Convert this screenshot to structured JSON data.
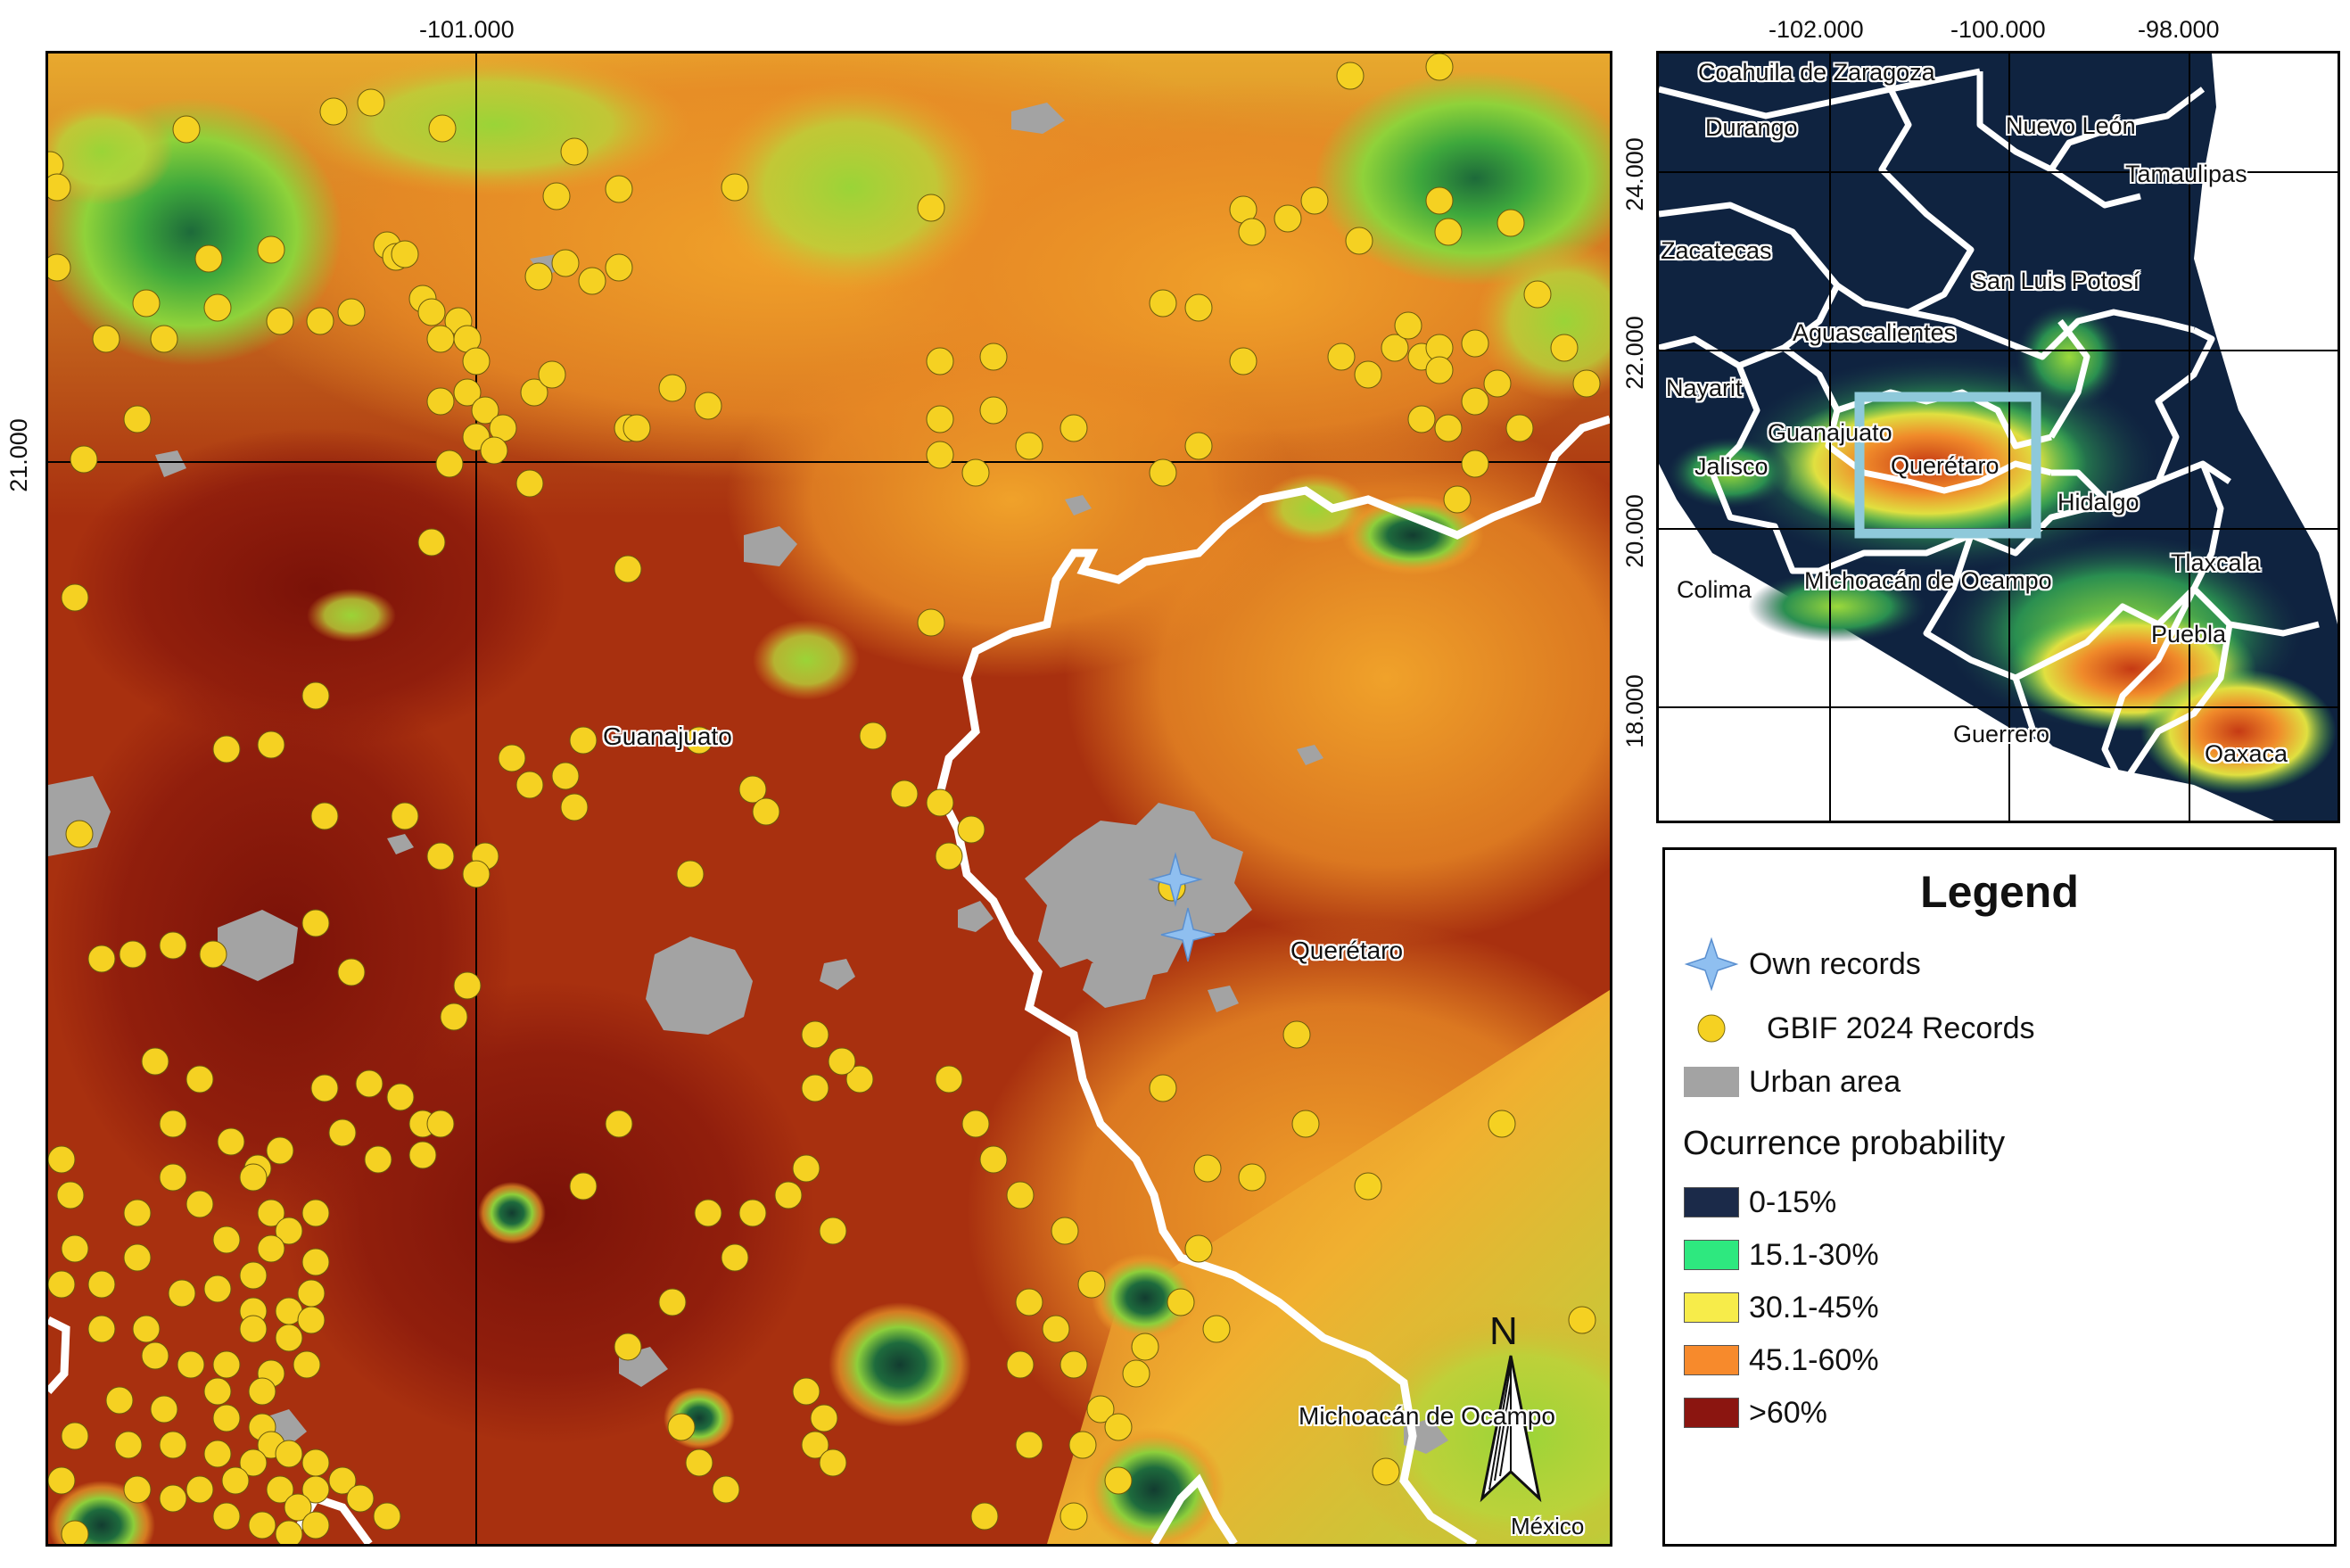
{
  "main_map": {
    "lon_tick": "-101.000",
    "lat_tick": "21.000",
    "labels": {
      "guanajuato": "Guanajuato",
      "queretaro": "Querétaro",
      "michoacan": "Michoacán de Ocampo",
      "mexico": "México"
    },
    "north_arrow": "N"
  },
  "inset_map": {
    "lon_ticks": [
      "-102.000",
      "-100.000",
      "-98.000"
    ],
    "lat_ticks": [
      "24.000",
      "22.000",
      "20.000",
      "18.000"
    ],
    "states": {
      "coahuila": "Coahuila de Zaragoza",
      "durango": "Durango",
      "nuevo_leon": "Nuevo León",
      "tamaulipas": "Tamaulipas",
      "zacatecas": "Zacatecas",
      "slp": "San Luis Potosí",
      "aguascalientes": "Aguascalientes",
      "nayarit": "Nayarit",
      "guanajuato": "Guanajuato",
      "queretaro": "Querétaro",
      "jalisco": "Jalisco",
      "hidalgo": "Hidalgo",
      "colima": "Colima",
      "michoacan": "Michoacán de Ocampo",
      "tlaxcala": "Tlaxcala",
      "puebla": "Puebla",
      "guerrero": "Guerrero",
      "oaxaca": "Oaxaca"
    }
  },
  "legend": {
    "title": "Legend",
    "own_records": "Own records",
    "gbif_records": "GBIF 2024 Records",
    "urban_area": "Urban area",
    "probability_title": "Ocurrence probability",
    "classes": [
      {
        "label": "0-15%",
        "color": "#1b2a49"
      },
      {
        "label": "15.1-30%",
        "color": "#2ee87f"
      },
      {
        "label": "30.1-45%",
        "color": "#f7ec4a"
      },
      {
        "label": "45.1-60%",
        "color": "#f78a2c"
      },
      {
        "label": ">60%",
        "color": "#8b1510"
      }
    ]
  },
  "colors": {
    "gbif_point": "#f5d122",
    "own_record_star": "#8fbff0",
    "urban": "#a3a3a3",
    "boundary": "#ffffff",
    "inset_extent_box": "#8ec9da"
  }
}
